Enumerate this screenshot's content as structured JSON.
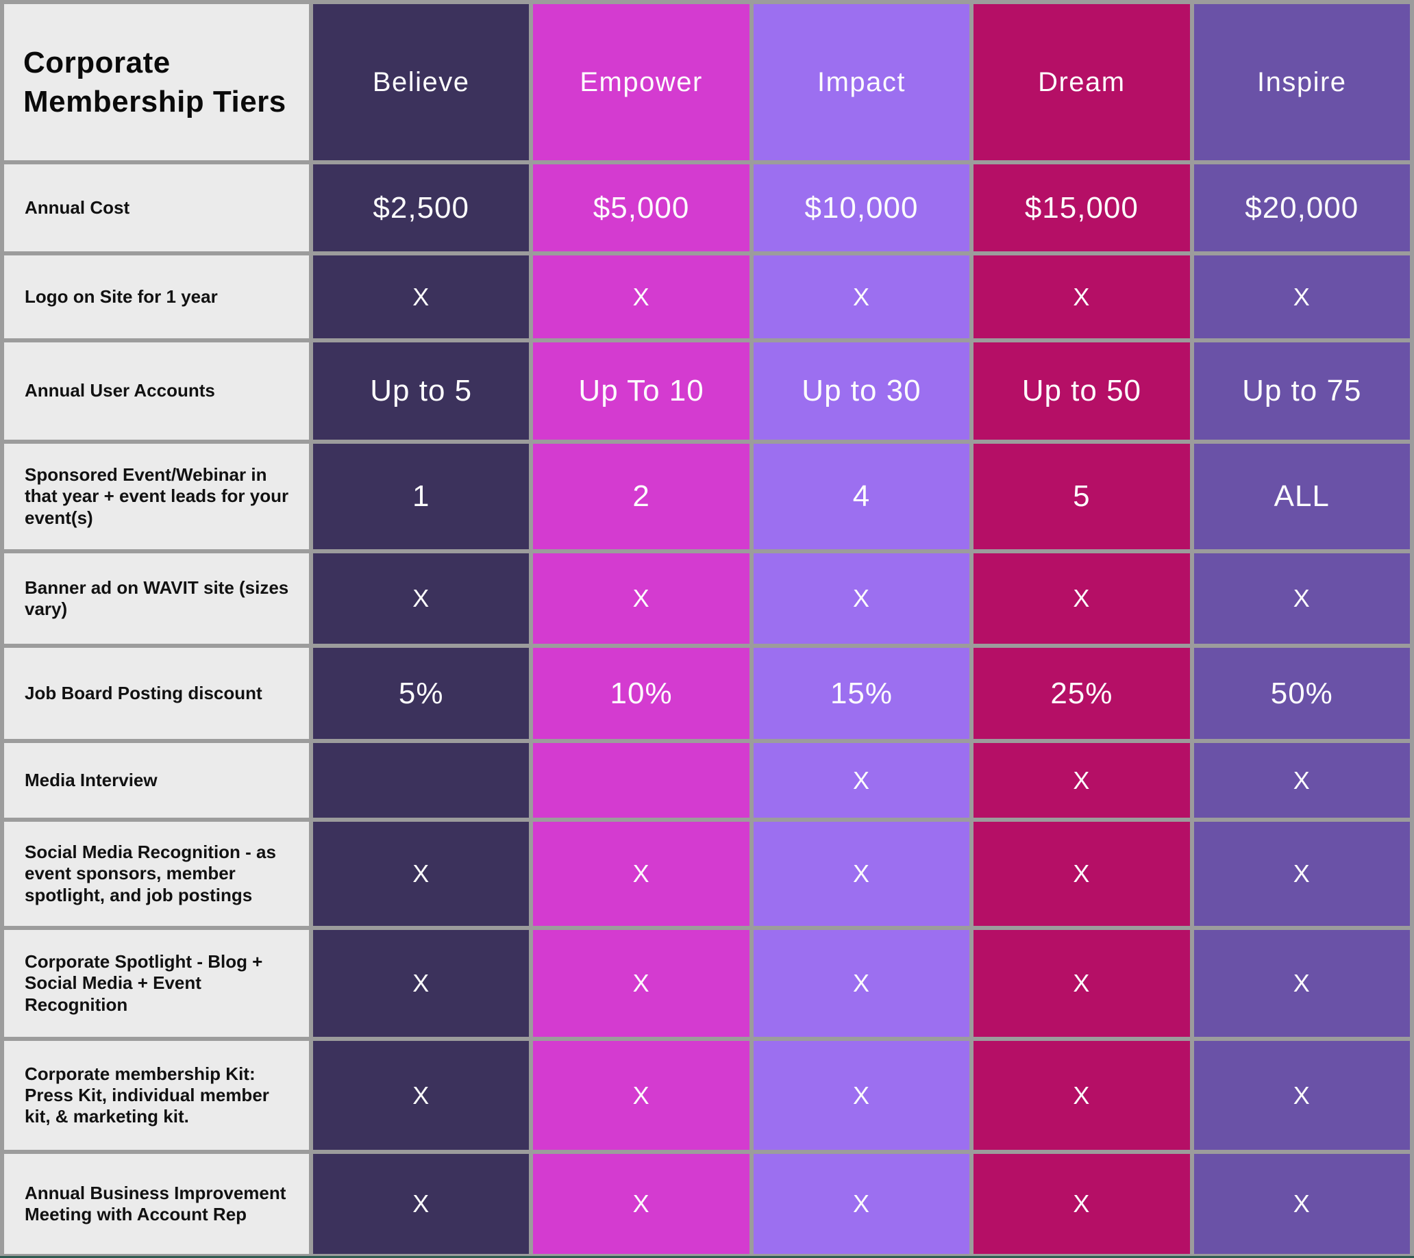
{
  "chart_data": {
    "type": "table",
    "title": "Corporate Membership Tiers",
    "columns": [
      "Believe",
      "Empower",
      "Impact",
      "Dream",
      "Inspire"
    ],
    "column_colors": {
      "Believe": "#3c325c",
      "Empower": "#d43bd0",
      "Impact": "#9c6ff0",
      "Dream": "#b50f66",
      "Inspire": "#6a52a7"
    },
    "rows": [
      {
        "label": "Annual Cost",
        "values": [
          "$2,500",
          "$5,000",
          "$10,000",
          "$15,000",
          "$20,000"
        ]
      },
      {
        "label": "Logo on Site for 1 year",
        "values": [
          "X",
          "X",
          "X",
          "X",
          "X"
        ]
      },
      {
        "label": "Annual User Accounts",
        "values": [
          "Up to 5",
          "Up To 10",
          "Up to 30",
          "Up to 50",
          "Up to 75"
        ]
      },
      {
        "label": "Sponsored Event/Webinar in that year + event leads for your event(s)",
        "values": [
          "1",
          "2",
          "4",
          "5",
          "ALL"
        ]
      },
      {
        "label": "Banner ad on WAVIT site (sizes vary)",
        "values": [
          "X",
          "X",
          "X",
          "X",
          "X"
        ]
      },
      {
        "label": "Job Board Posting discount",
        "values": [
          "5%",
          "10%",
          "15%",
          "25%",
          "50%"
        ]
      },
      {
        "label": "Media Interview",
        "values": [
          "",
          "",
          "X",
          "X",
          "X"
        ]
      },
      {
        "label": "Social Media Recognition - as event sponsors, member spotlight, and job postings",
        "values": [
          "X",
          "X",
          "X",
          "X",
          "X"
        ]
      },
      {
        "label": "Corporate Spotlight - Blog + Social Media + Event Recognition",
        "values": [
          "X",
          "X",
          "X",
          "X",
          "X"
        ]
      },
      {
        "label": "Corporate membership Kit: Press Kit, individual member kit, & marketing kit.",
        "values": [
          "X",
          "X",
          "X",
          "X",
          "X"
        ]
      },
      {
        "label": "Annual Business Improvement Meeting with Account Rep",
        "values": [
          "X",
          "X",
          "X",
          "X",
          "X"
        ]
      }
    ],
    "styles": {
      "label_background": "#ebebeb",
      "grid_line_color": "#9c9c9c",
      "value_text_color": "#fdfdfd",
      "title_text_color": "#0a0a0a",
      "bottom_edge_color": "#2e5b51"
    }
  }
}
